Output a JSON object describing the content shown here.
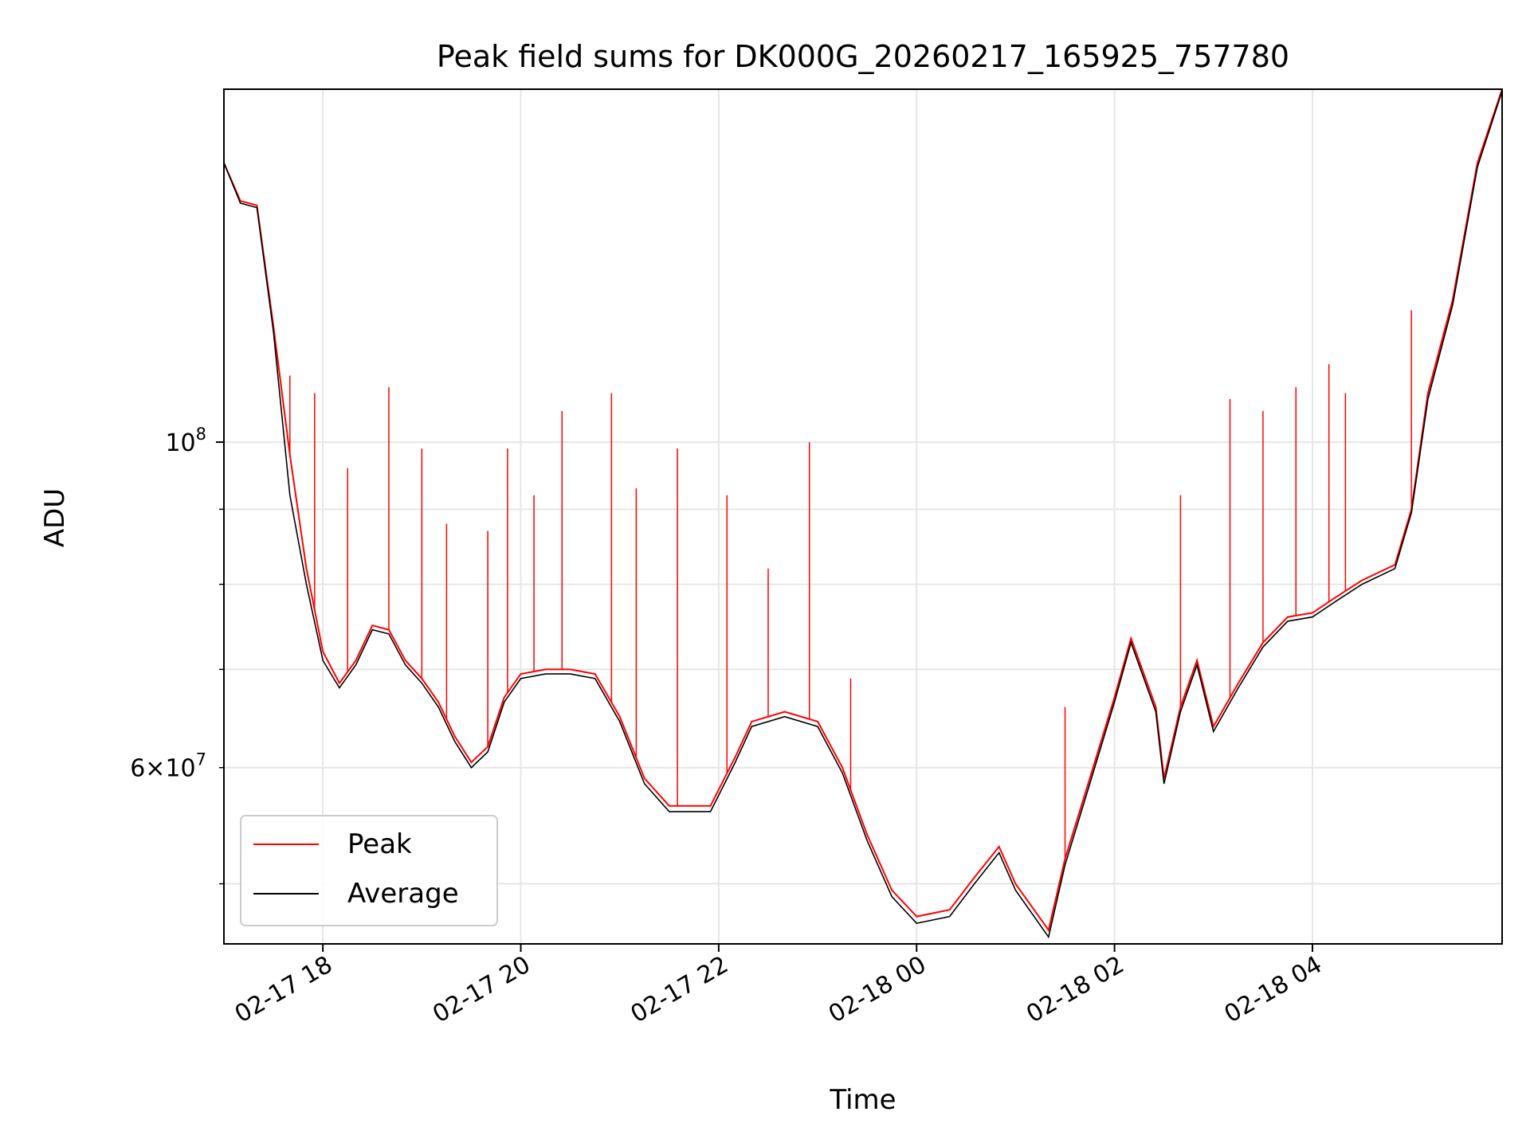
{
  "chart_data": {
    "type": "line",
    "title": "Peak field sums for DK000G_20260217_165925_757780",
    "xlabel": "Time",
    "ylabel": "ADU",
    "yscale": "log",
    "ylim": [
      45500000,
      174000000
    ],
    "xlim": [
      "02-17 17:00",
      "02-18 05:55"
    ],
    "grid": true,
    "legend_position": "lower-left",
    "x_ticks": [
      {
        "label": "02-17 18",
        "value": "02-17 18:00"
      },
      {
        "label": "02-17 20",
        "value": "02-17 20:00"
      },
      {
        "label": "02-17 22",
        "value": "02-17 22:00"
      },
      {
        "label": "02-18 00",
        "value": "02-18 00:00"
      },
      {
        "label": "02-18 02",
        "value": "02-18 02:00"
      },
      {
        "label": "02-18 04",
        "value": "02-18 04:00"
      }
    ],
    "y_major_ticks": [
      {
        "base": "10",
        "exp": "8",
        "value": 100000000
      }
    ],
    "y_labeled_minor_ticks": [
      {
        "mant": "6",
        "base": "10",
        "exp": "7",
        "value": 60000000
      }
    ],
    "y_minor_ticks": [
      50000000,
      60000000,
      70000000,
      80000000,
      90000000
    ],
    "series": [
      {
        "name": "Peak",
        "color": "#ff0000",
        "points": [
          [
            "02-17 17:00",
            155000000
          ],
          [
            "02-17 17:10",
            146000000
          ],
          [
            "02-17 17:20",
            145000000
          ],
          [
            "02-17 17:30",
            120000000
          ],
          [
            "02-17 17:40",
            98000000
          ],
          [
            "02-17 17:50",
            82000000
          ],
          [
            "02-17 18:00",
            72000000
          ],
          [
            "02-17 18:10",
            68500000
          ],
          [
            "02-17 18:20",
            71000000
          ],
          [
            "02-17 18:30",
            75000000
          ],
          [
            "02-17 18:40",
            74500000
          ],
          [
            "02-17 18:50",
            71000000
          ],
          [
            "02-17 19:00",
            69000000
          ],
          [
            "02-17 19:10",
            66500000
          ],
          [
            "02-17 19:20",
            63000000
          ],
          [
            "02-17 19:30",
            60500000
          ],
          [
            "02-17 19:40",
            62000000
          ],
          [
            "02-17 19:50",
            67000000
          ],
          [
            "02-17 20:00",
            69500000
          ],
          [
            "02-17 20:15",
            70000000
          ],
          [
            "02-17 20:30",
            70000000
          ],
          [
            "02-17 20:45",
            69500000
          ],
          [
            "02-17 21:00",
            65000000
          ],
          [
            "02-17 21:15",
            59000000
          ],
          [
            "02-17 21:30",
            56500000
          ],
          [
            "02-17 21:45",
            56500000
          ],
          [
            "02-17 21:55",
            56500000
          ],
          [
            "02-17 22:10",
            61000000
          ],
          [
            "02-17 22:20",
            64500000
          ],
          [
            "02-17 22:40",
            65500000
          ],
          [
            "02-17 23:00",
            64500000
          ],
          [
            "02-17 23:15",
            60000000
          ],
          [
            "02-17 23:30",
            54000000
          ],
          [
            "02-17 23:45",
            49500000
          ],
          [
            "02-18 00:00",
            47500000
          ],
          [
            "02-18 00:20",
            48000000
          ],
          [
            "02-18 00:35",
            50500000
          ],
          [
            "02-18 00:50",
            53000000
          ],
          [
            "02-18 01:00",
            50000000
          ],
          [
            "02-18 01:20",
            46500000
          ],
          [
            "02-18 01:30",
            52000000
          ],
          [
            "02-18 01:45",
            59000000
          ],
          [
            "02-18 02:00",
            67000000
          ],
          [
            "02-18 02:10",
            73500000
          ],
          [
            "02-18 02:25",
            66000000
          ],
          [
            "02-18 02:30",
            59000000
          ],
          [
            "02-18 02:40",
            66000000
          ],
          [
            "02-18 02:50",
            71000000
          ],
          [
            "02-18 03:00",
            64000000
          ],
          [
            "02-18 03:15",
            68500000
          ],
          [
            "02-18 03:30",
            73000000
          ],
          [
            "02-18 03:45",
            76000000
          ],
          [
            "02-18 04:00",
            76500000
          ],
          [
            "02-18 04:15",
            78500000
          ],
          [
            "02-18 04:30",
            80500000
          ],
          [
            "02-18 04:50",
            82500000
          ],
          [
            "02-18 05:00",
            90000000
          ],
          [
            "02-18 05:10",
            108000000
          ],
          [
            "02-18 05:25",
            125000000
          ],
          [
            "02-18 05:40",
            155000000
          ],
          [
            "02-18 05:55",
            174000000
          ]
        ],
        "spikes": [
          [
            "02-17 17:40",
            111000000
          ],
          [
            "02-17 17:55",
            108000000
          ],
          [
            "02-17 18:15",
            96000000
          ],
          [
            "02-17 18:40",
            109000000
          ],
          [
            "02-17 19:00",
            99000000
          ],
          [
            "02-17 19:15",
            88000000
          ],
          [
            "02-17 19:40",
            87000000
          ],
          [
            "02-17 19:52",
            99000000
          ],
          [
            "02-17 20:08",
            92000000
          ],
          [
            "02-17 20:25",
            105000000
          ],
          [
            "02-17 20:55",
            108000000
          ],
          [
            "02-17 21:10",
            93000000
          ],
          [
            "02-17 21:35",
            99000000
          ],
          [
            "02-17 22:05",
            92000000
          ],
          [
            "02-17 22:30",
            82000000
          ],
          [
            "02-17 22:55",
            100000000
          ],
          [
            "02-17 23:20",
            69000000
          ],
          [
            "02-18 01:30",
            66000000
          ],
          [
            "02-18 02:40",
            92000000
          ],
          [
            "02-18 03:10",
            107000000
          ],
          [
            "02-18 03:30",
            105000000
          ],
          [
            "02-18 03:50",
            109000000
          ],
          [
            "02-18 04:10",
            113000000
          ],
          [
            "02-18 04:20",
            108000000
          ],
          [
            "02-18 05:00",
            123000000
          ]
        ]
      },
      {
        "name": "Average",
        "color": "#000000",
        "points": [
          [
            "02-17 17:00",
            155000000
          ],
          [
            "02-17 17:10",
            145500000
          ],
          [
            "02-17 17:20",
            144500000
          ],
          [
            "02-17 17:30",
            119000000
          ],
          [
            "02-17 17:40",
            92000000
          ],
          [
            "02-17 17:50",
            80000000
          ],
          [
            "02-17 18:00",
            71000000
          ],
          [
            "02-17 18:10",
            68000000
          ],
          [
            "02-17 18:20",
            70500000
          ],
          [
            "02-17 18:30",
            74500000
          ],
          [
            "02-17 18:40",
            74000000
          ],
          [
            "02-17 18:50",
            70500000
          ],
          [
            "02-17 19:00",
            68500000
          ],
          [
            "02-17 19:10",
            66000000
          ],
          [
            "02-17 19:20",
            62500000
          ],
          [
            "02-17 19:30",
            60000000
          ],
          [
            "02-17 19:40",
            61500000
          ],
          [
            "02-17 19:50",
            66500000
          ],
          [
            "02-17 20:00",
            69000000
          ],
          [
            "02-17 20:15",
            69500000
          ],
          [
            "02-17 20:30",
            69500000
          ],
          [
            "02-17 20:45",
            69000000
          ],
          [
            "02-17 21:00",
            64500000
          ],
          [
            "02-17 21:15",
            58500000
          ],
          [
            "02-17 21:30",
            56000000
          ],
          [
            "02-17 21:45",
            56000000
          ],
          [
            "02-17 21:55",
            56000000
          ],
          [
            "02-17 22:10",
            60500000
          ],
          [
            "02-17 22:20",
            64000000
          ],
          [
            "02-17 22:40",
            65000000
          ],
          [
            "02-17 23:00",
            64000000
          ],
          [
            "02-17 23:15",
            59500000
          ],
          [
            "02-17 23:30",
            53500000
          ],
          [
            "02-17 23:45",
            49000000
          ],
          [
            "02-18 00:00",
            47000000
          ],
          [
            "02-18 00:20",
            47500000
          ],
          [
            "02-18 00:35",
            50000000
          ],
          [
            "02-18 00:50",
            52500000
          ],
          [
            "02-18 01:00",
            49500000
          ],
          [
            "02-18 01:20",
            46000000
          ],
          [
            "02-18 01:30",
            51500000
          ],
          [
            "02-18 01:45",
            58500000
          ],
          [
            "02-18 02:00",
            66500000
          ],
          [
            "02-18 02:10",
            73000000
          ],
          [
            "02-18 02:25",
            65500000
          ],
          [
            "02-18 02:30",
            58500000
          ],
          [
            "02-18 02:40",
            65500000
          ],
          [
            "02-18 02:50",
            70500000
          ],
          [
            "02-18 03:00",
            63500000
          ],
          [
            "02-18 03:15",
            68000000
          ],
          [
            "02-18 03:30",
            72500000
          ],
          [
            "02-18 03:45",
            75500000
          ],
          [
            "02-18 04:00",
            76000000
          ],
          [
            "02-18 04:15",
            78000000
          ],
          [
            "02-18 04:30",
            80000000
          ],
          [
            "02-18 04:50",
            82000000
          ],
          [
            "02-18 05:00",
            89500000
          ],
          [
            "02-18 05:10",
            107000000
          ],
          [
            "02-18 05:25",
            124000000
          ],
          [
            "02-18 05:40",
            154000000
          ],
          [
            "02-18 05:55",
            173500000
          ]
        ]
      }
    ]
  }
}
